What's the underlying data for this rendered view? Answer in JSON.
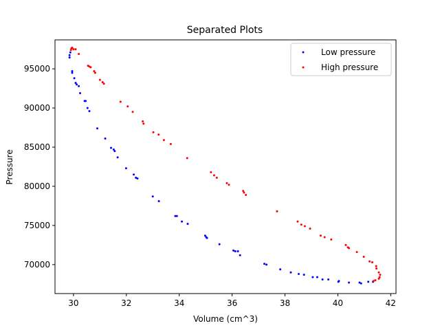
{
  "chart_data": {
    "type": "scatter",
    "title": "Separated Plots",
    "xlabel": "Volume (cm^3)",
    "ylabel": "Pressure",
    "xlim": [
      29.3,
      42.2
    ],
    "ylim": [
      66300,
      98700
    ],
    "xticks": [
      30,
      32,
      34,
      36,
      38,
      40,
      42
    ],
    "xtick_labels": [
      "30",
      "32",
      "34",
      "36",
      "38",
      "40",
      "42"
    ],
    "yticks": [
      70000,
      75000,
      80000,
      85000,
      90000,
      95000
    ],
    "ytick_labels": [
      "70000",
      "75000",
      "80000",
      "85000",
      "90000",
      "95000"
    ],
    "grid": false,
    "legend_position": "top-right",
    "series": [
      {
        "name": "Low pressure",
        "color": "#0000ff",
        "points": [
          [
            29.85,
            96.45
          ],
          [
            29.85,
            96.75
          ],
          [
            29.88,
            97.1
          ],
          [
            29.95,
            94.7
          ],
          [
            29.95,
            94.5
          ],
          [
            30.03,
            93.8
          ],
          [
            30.08,
            93.2
          ],
          [
            30.12,
            93.0
          ],
          [
            30.2,
            92.8
          ],
          [
            30.25,
            91.9
          ],
          [
            30.42,
            90.9
          ],
          [
            30.46,
            90.9
          ],
          [
            30.53,
            90.0
          ],
          [
            30.6,
            89.6
          ],
          [
            30.9,
            87.4
          ],
          [
            31.2,
            86.1
          ],
          [
            31.42,
            84.9
          ],
          [
            31.52,
            84.7
          ],
          [
            31.56,
            84.5
          ],
          [
            31.67,
            83.7
          ],
          [
            31.99,
            82.3
          ],
          [
            32.28,
            81.5
          ],
          [
            32.36,
            81.1
          ],
          [
            32.42,
            81.0
          ],
          [
            33.0,
            78.7
          ],
          [
            33.23,
            78.1
          ],
          [
            33.85,
            76.2
          ],
          [
            33.91,
            76.2
          ],
          [
            34.1,
            75.5
          ],
          [
            34.32,
            75.2
          ],
          [
            34.98,
            73.7
          ],
          [
            35.02,
            73.5
          ],
          [
            35.05,
            73.4
          ],
          [
            35.52,
            72.6
          ],
          [
            36.05,
            71.8
          ],
          [
            36.12,
            71.7
          ],
          [
            36.22,
            71.7
          ],
          [
            36.3,
            71.2
          ],
          [
            37.22,
            70.1
          ],
          [
            37.3,
            70.0
          ],
          [
            37.82,
            69.4
          ],
          [
            38.22,
            69.0
          ],
          [
            38.52,
            68.8
          ],
          [
            38.72,
            68.7
          ],
          [
            39.05,
            68.4
          ],
          [
            39.22,
            68.4
          ],
          [
            39.42,
            68.1
          ],
          [
            39.64,
            68.1
          ],
          [
            40.02,
            67.8
          ],
          [
            40.04,
            67.9
          ],
          [
            40.42,
            67.7
          ],
          [
            40.82,
            67.7
          ],
          [
            40.88,
            67.6
          ],
          [
            41.15,
            67.8
          ],
          [
            41.33,
            67.8
          ]
        ]
      },
      {
        "name": "High pressure",
        "color": "#ff0000",
        "points": [
          [
            29.9,
            97.4
          ],
          [
            29.92,
            97.6
          ],
          [
            29.95,
            97.7
          ],
          [
            30.0,
            97.5
          ],
          [
            30.08,
            97.5
          ],
          [
            30.2,
            96.9
          ],
          [
            30.55,
            95.4
          ],
          [
            30.6,
            95.3
          ],
          [
            30.65,
            95.2
          ],
          [
            30.78,
            94.7
          ],
          [
            30.82,
            94.5
          ],
          [
            31.0,
            93.6
          ],
          [
            31.1,
            93.3
          ],
          [
            31.15,
            93.1
          ],
          [
            31.78,
            90.8
          ],
          [
            32.05,
            90.2
          ],
          [
            32.24,
            89.5
          ],
          [
            32.62,
            88.3
          ],
          [
            32.65,
            88.0
          ],
          [
            33.02,
            86.9
          ],
          [
            33.22,
            86.6
          ],
          [
            33.42,
            85.9
          ],
          [
            33.68,
            85.4
          ],
          [
            34.3,
            83.6
          ],
          [
            35.2,
            81.8
          ],
          [
            35.32,
            81.4
          ],
          [
            35.42,
            81.1
          ],
          [
            35.8,
            80.4
          ],
          [
            35.88,
            80.2
          ],
          [
            36.42,
            79.4
          ],
          [
            36.45,
            79.2
          ],
          [
            36.52,
            78.9
          ],
          [
            37.7,
            76.8
          ],
          [
            38.48,
            75.5
          ],
          [
            38.62,
            75.1
          ],
          [
            38.75,
            74.9
          ],
          [
            38.95,
            74.6
          ],
          [
            39.35,
            73.7
          ],
          [
            39.5,
            73.5
          ],
          [
            39.75,
            73.2
          ],
          [
            40.3,
            72.5
          ],
          [
            40.38,
            72.2
          ],
          [
            40.42,
            72.1
          ],
          [
            40.72,
            71.6
          ],
          [
            40.98,
            71.0
          ],
          [
            41.2,
            70.4
          ],
          [
            41.3,
            70.3
          ],
          [
            41.45,
            69.8
          ],
          [
            41.46,
            69.5
          ],
          [
            41.55,
            69.0
          ],
          [
            41.6,
            68.7
          ],
          [
            41.58,
            68.4
          ],
          [
            41.55,
            68.2
          ],
          [
            41.42,
            68.0
          ],
          [
            41.35,
            67.9
          ]
        ]
      }
    ]
  }
}
